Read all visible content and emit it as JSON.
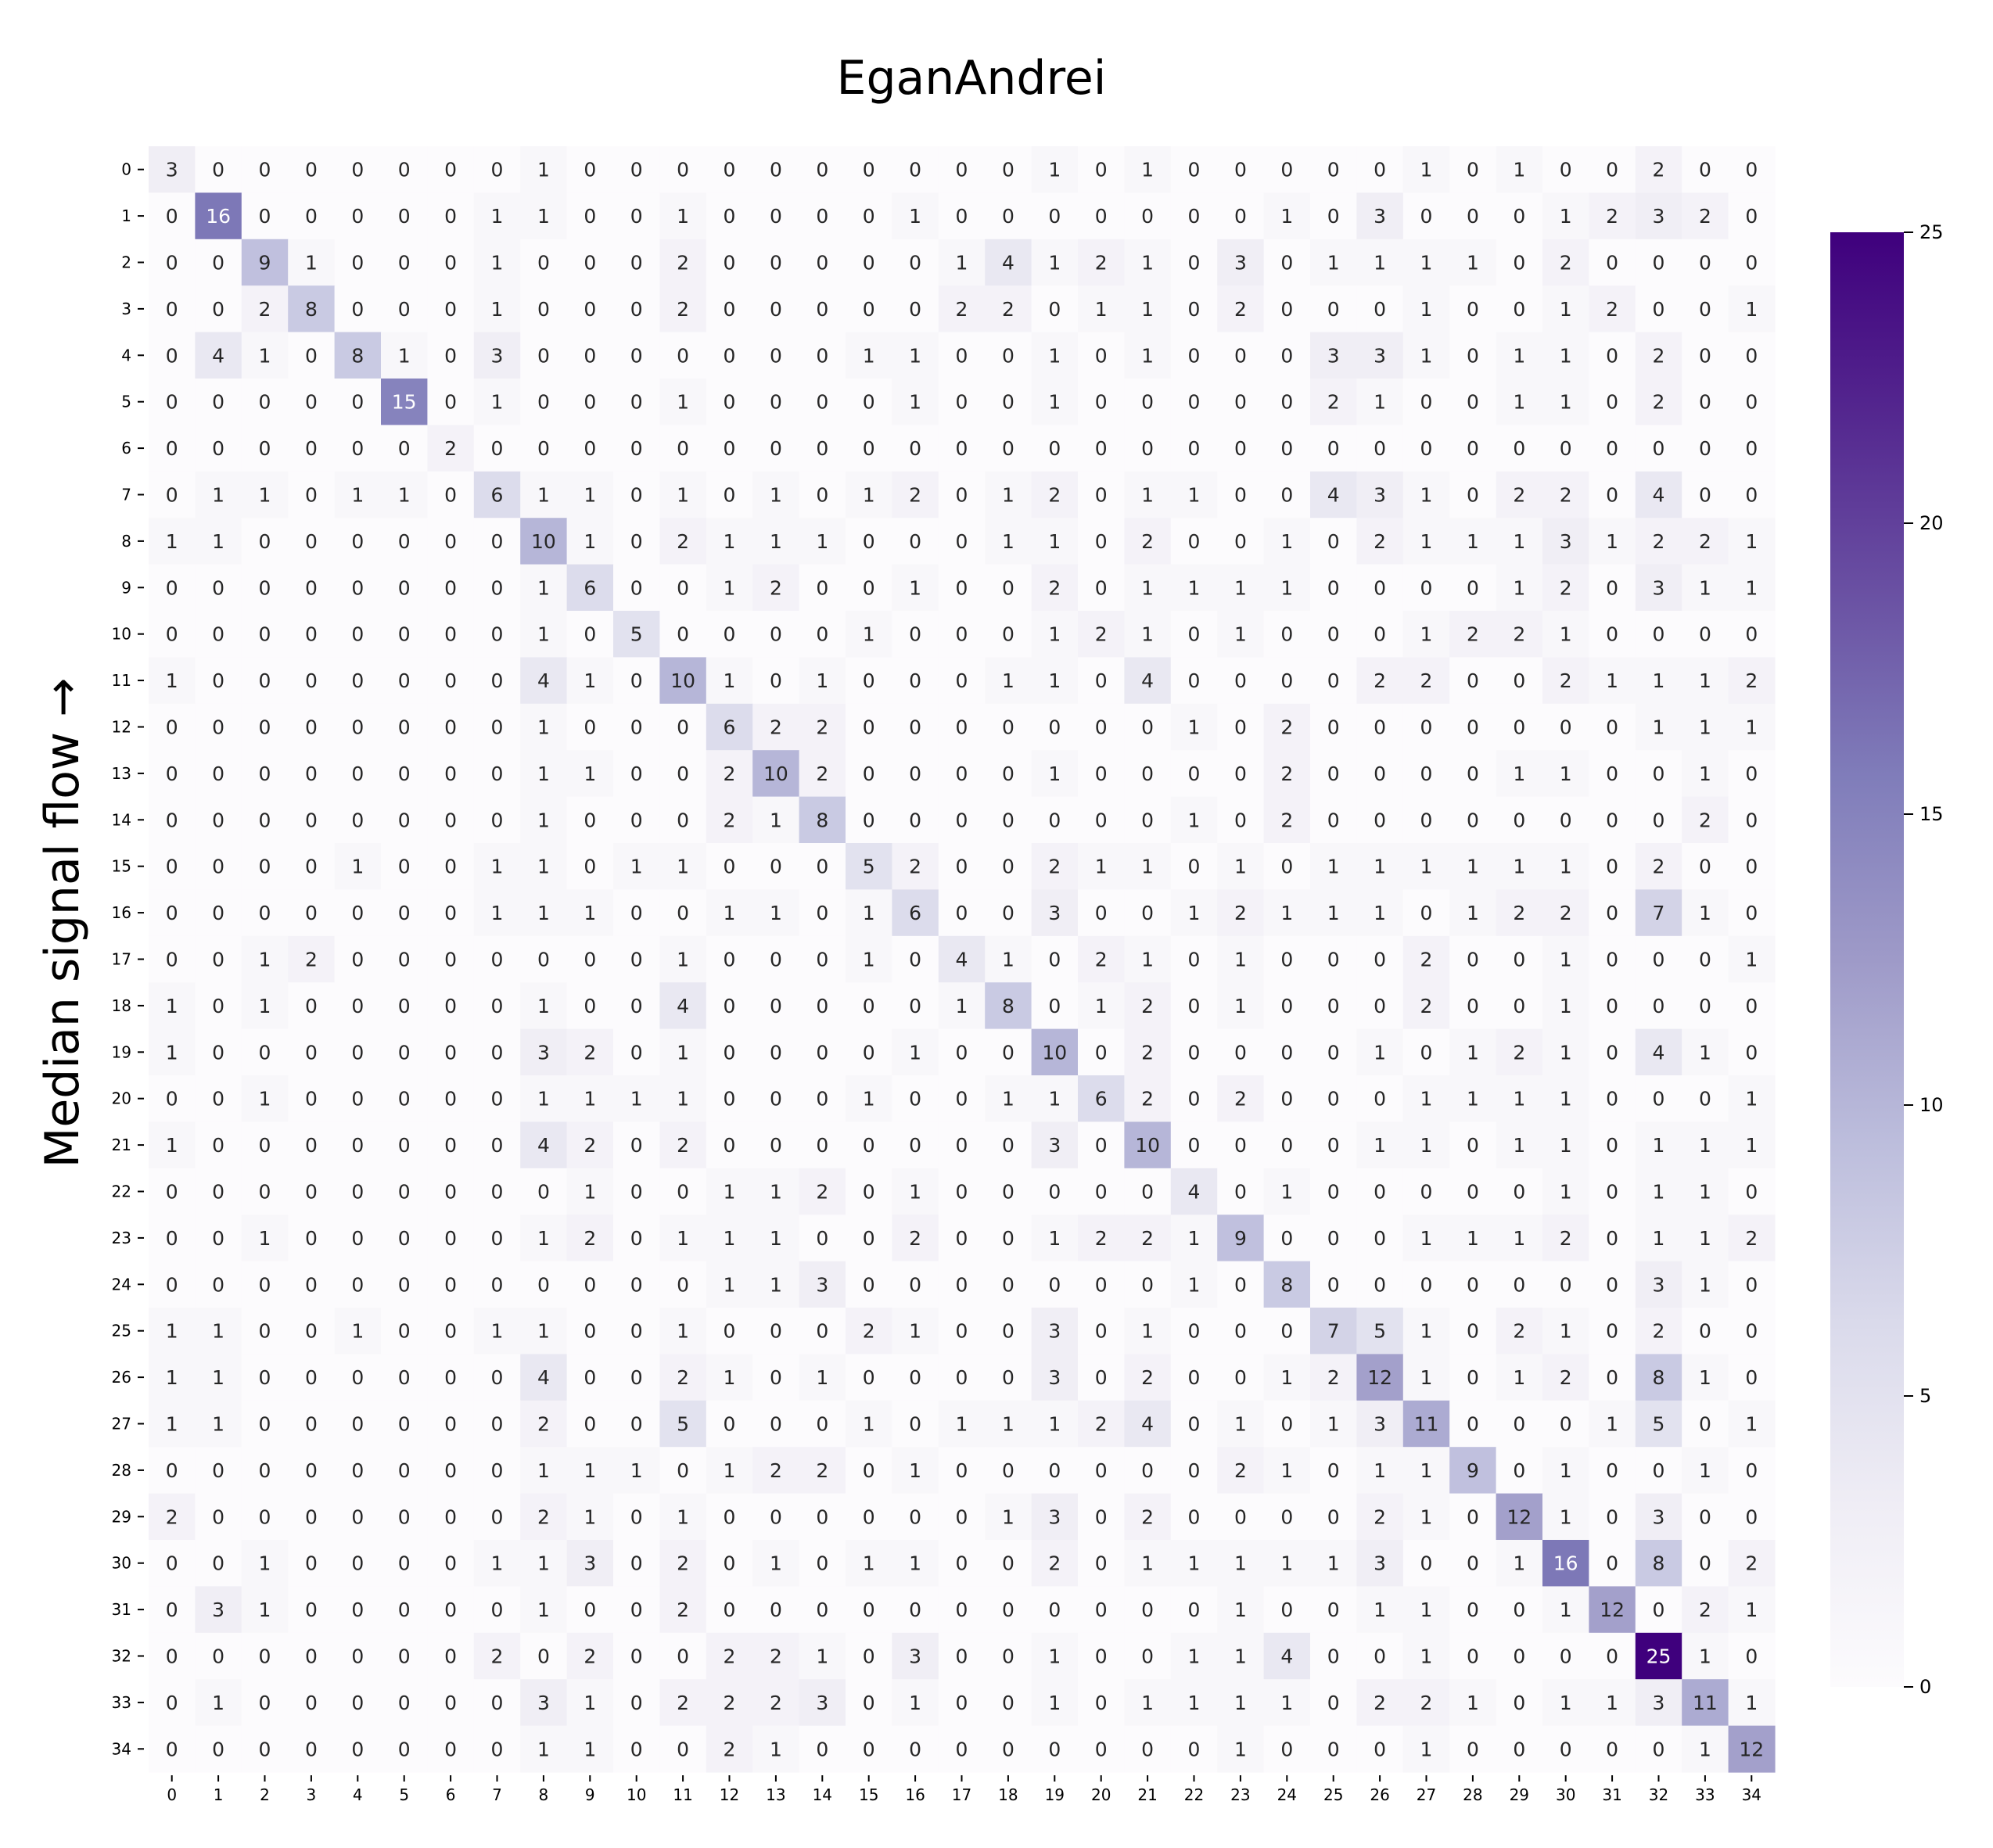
{
  "chart_data": {
    "type": "heatmap",
    "title": "EganAndrei",
    "xlabel": "",
    "ylabel": "Median signal flow →",
    "x_labels": [
      "0",
      "1",
      "2",
      "3",
      "4",
      "5",
      "6",
      "7",
      "8",
      "9",
      "10",
      "11",
      "12",
      "13",
      "14",
      "15",
      "16",
      "17",
      "18",
      "19",
      "20",
      "21",
      "22",
      "23",
      "24",
      "25",
      "26",
      "27",
      "28",
      "29",
      "30",
      "31",
      "32",
      "33",
      "34"
    ],
    "y_labels": [
      "0",
      "1",
      "2",
      "3",
      "4",
      "5",
      "6",
      "7",
      "8",
      "9",
      "10",
      "11",
      "12",
      "13",
      "14",
      "15",
      "16",
      "17",
      "18",
      "19",
      "20",
      "21",
      "22",
      "23",
      "24",
      "25",
      "26",
      "27",
      "28",
      "29",
      "30",
      "31",
      "32",
      "33",
      "34"
    ],
    "values": [
      [
        3,
        0,
        0,
        0,
        0,
        0,
        0,
        0,
        1,
        0,
        0,
        0,
        0,
        0,
        0,
        0,
        0,
        0,
        0,
        1,
        0,
        1,
        0,
        0,
        0,
        0,
        0,
        1,
        0,
        1,
        0,
        0,
        2,
        0,
        0
      ],
      [
        0,
        16,
        0,
        0,
        0,
        0,
        0,
        1,
        1,
        0,
        0,
        1,
        0,
        0,
        0,
        0,
        1,
        0,
        0,
        0,
        0,
        0,
        0,
        0,
        1,
        0,
        3,
        0,
        0,
        0,
        1,
        2,
        3,
        2,
        0
      ],
      [
        0,
        0,
        9,
        1,
        0,
        0,
        0,
        1,
        0,
        0,
        0,
        2,
        0,
        0,
        0,
        0,
        0,
        1,
        4,
        1,
        2,
        1,
        0,
        3,
        0,
        1,
        1,
        1,
        1,
        0,
        2,
        0,
        0,
        0,
        0
      ],
      [
        0,
        0,
        2,
        8,
        0,
        0,
        0,
        1,
        0,
        0,
        0,
        2,
        0,
        0,
        0,
        0,
        0,
        2,
        2,
        0,
        1,
        1,
        0,
        2,
        0,
        0,
        0,
        1,
        0,
        0,
        1,
        2,
        0,
        0,
        1
      ],
      [
        0,
        4,
        1,
        0,
        8,
        1,
        0,
        3,
        0,
        0,
        0,
        0,
        0,
        0,
        0,
        1,
        1,
        0,
        0,
        1,
        0,
        1,
        0,
        0,
        0,
        3,
        3,
        1,
        0,
        1,
        1,
        0,
        2,
        0,
        0
      ],
      [
        0,
        0,
        0,
        0,
        0,
        15,
        0,
        1,
        0,
        0,
        0,
        1,
        0,
        0,
        0,
        0,
        1,
        0,
        0,
        1,
        0,
        0,
        0,
        0,
        0,
        2,
        1,
        0,
        0,
        1,
        1,
        0,
        2,
        0,
        0
      ],
      [
        0,
        0,
        0,
        0,
        0,
        0,
        2,
        0,
        0,
        0,
        0,
        0,
        0,
        0,
        0,
        0,
        0,
        0,
        0,
        0,
        0,
        0,
        0,
        0,
        0,
        0,
        0,
        0,
        0,
        0,
        0,
        0,
        0,
        0,
        0
      ],
      [
        0,
        1,
        1,
        0,
        1,
        1,
        0,
        6,
        1,
        1,
        0,
        1,
        0,
        1,
        0,
        1,
        2,
        0,
        1,
        2,
        0,
        1,
        1,
        0,
        0,
        4,
        3,
        1,
        0,
        2,
        2,
        0,
        4,
        0,
        0
      ],
      [
        1,
        1,
        0,
        0,
        0,
        0,
        0,
        0,
        10,
        1,
        0,
        2,
        1,
        1,
        1,
        0,
        0,
        0,
        1,
        1,
        0,
        2,
        0,
        0,
        1,
        0,
        2,
        1,
        1,
        1,
        3,
        1,
        2,
        2,
        1
      ],
      [
        0,
        0,
        0,
        0,
        0,
        0,
        0,
        0,
        1,
        6,
        0,
        0,
        1,
        2,
        0,
        0,
        1,
        0,
        0,
        2,
        0,
        1,
        1,
        1,
        1,
        0,
        0,
        0,
        0,
        1,
        2,
        0,
        3,
        1,
        1
      ],
      [
        0,
        0,
        0,
        0,
        0,
        0,
        0,
        0,
        1,
        0,
        5,
        0,
        0,
        0,
        0,
        1,
        0,
        0,
        0,
        1,
        2,
        1,
        0,
        1,
        0,
        0,
        0,
        1,
        2,
        2,
        1,
        0,
        0,
        0,
        0
      ],
      [
        1,
        0,
        0,
        0,
        0,
        0,
        0,
        0,
        4,
        1,
        0,
        10,
        1,
        0,
        1,
        0,
        0,
        0,
        1,
        1,
        0,
        4,
        0,
        0,
        0,
        0,
        2,
        2,
        0,
        0,
        2,
        1,
        1,
        1,
        2
      ],
      [
        0,
        0,
        0,
        0,
        0,
        0,
        0,
        0,
        1,
        0,
        0,
        0,
        6,
        2,
        2,
        0,
        0,
        0,
        0,
        0,
        0,
        0,
        1,
        0,
        2,
        0,
        0,
        0,
        0,
        0,
        0,
        0,
        1,
        1,
        1
      ],
      [
        0,
        0,
        0,
        0,
        0,
        0,
        0,
        0,
        1,
        1,
        0,
        0,
        2,
        10,
        2,
        0,
        0,
        0,
        0,
        1,
        0,
        0,
        0,
        0,
        2,
        0,
        0,
        0,
        0,
        1,
        1,
        0,
        0,
        1,
        0
      ],
      [
        0,
        0,
        0,
        0,
        0,
        0,
        0,
        0,
        1,
        0,
        0,
        0,
        2,
        1,
        8,
        0,
        0,
        0,
        0,
        0,
        0,
        0,
        1,
        0,
        2,
        0,
        0,
        0,
        0,
        0,
        0,
        0,
        0,
        2,
        0
      ],
      [
        0,
        0,
        0,
        0,
        1,
        0,
        0,
        1,
        1,
        0,
        1,
        1,
        0,
        0,
        0,
        5,
        2,
        0,
        0,
        2,
        1,
        1,
        0,
        1,
        0,
        1,
        1,
        1,
        1,
        1,
        1,
        0,
        2,
        0,
        0
      ],
      [
        0,
        0,
        0,
        0,
        0,
        0,
        0,
        1,
        1,
        1,
        0,
        0,
        1,
        1,
        0,
        1,
        6,
        0,
        0,
        3,
        0,
        0,
        1,
        2,
        1,
        1,
        1,
        0,
        1,
        2,
        2,
        0,
        7,
        1,
        0
      ],
      [
        0,
        0,
        1,
        2,
        0,
        0,
        0,
        0,
        0,
        0,
        0,
        1,
        0,
        0,
        0,
        1,
        0,
        4,
        1,
        0,
        2,
        1,
        0,
        1,
        0,
        0,
        0,
        2,
        0,
        0,
        1,
        0,
        0,
        0,
        1
      ],
      [
        1,
        0,
        1,
        0,
        0,
        0,
        0,
        0,
        1,
        0,
        0,
        4,
        0,
        0,
        0,
        0,
        0,
        1,
        8,
        0,
        1,
        2,
        0,
        1,
        0,
        0,
        0,
        2,
        0,
        0,
        1,
        0,
        0,
        0,
        0
      ],
      [
        1,
        0,
        0,
        0,
        0,
        0,
        0,
        0,
        3,
        2,
        0,
        1,
        0,
        0,
        0,
        0,
        1,
        0,
        0,
        10,
        0,
        2,
        0,
        0,
        0,
        0,
        1,
        0,
        1,
        2,
        1,
        0,
        4,
        1,
        0
      ],
      [
        0,
        0,
        1,
        0,
        0,
        0,
        0,
        0,
        1,
        1,
        1,
        1,
        0,
        0,
        0,
        1,
        0,
        0,
        1,
        1,
        6,
        2,
        0,
        2,
        0,
        0,
        0,
        1,
        1,
        1,
        1,
        0,
        0,
        0,
        1
      ],
      [
        1,
        0,
        0,
        0,
        0,
        0,
        0,
        0,
        4,
        2,
        0,
        2,
        0,
        0,
        0,
        0,
        0,
        0,
        0,
        3,
        0,
        10,
        0,
        0,
        0,
        0,
        1,
        1,
        0,
        1,
        1,
        0,
        1,
        1,
        1
      ],
      [
        0,
        0,
        0,
        0,
        0,
        0,
        0,
        0,
        0,
        1,
        0,
        0,
        1,
        1,
        2,
        0,
        1,
        0,
        0,
        0,
        0,
        0,
        4,
        0,
        1,
        0,
        0,
        0,
        0,
        0,
        1,
        0,
        1,
        1,
        0
      ],
      [
        0,
        0,
        1,
        0,
        0,
        0,
        0,
        0,
        1,
        2,
        0,
        1,
        1,
        1,
        0,
        0,
        2,
        0,
        0,
        1,
        2,
        2,
        1,
        9,
        0,
        0,
        0,
        1,
        1,
        1,
        2,
        0,
        1,
        1,
        2
      ],
      [
        0,
        0,
        0,
        0,
        0,
        0,
        0,
        0,
        0,
        0,
        0,
        0,
        1,
        1,
        3,
        0,
        0,
        0,
        0,
        0,
        0,
        0,
        1,
        0,
        8,
        0,
        0,
        0,
        0,
        0,
        0,
        0,
        3,
        1,
        0
      ],
      [
        1,
        1,
        0,
        0,
        1,
        0,
        0,
        1,
        1,
        0,
        0,
        1,
        0,
        0,
        0,
        2,
        1,
        0,
        0,
        3,
        0,
        1,
        0,
        0,
        0,
        7,
        5,
        1,
        0,
        2,
        1,
        0,
        2,
        0,
        0
      ],
      [
        1,
        1,
        0,
        0,
        0,
        0,
        0,
        0,
        4,
        0,
        0,
        2,
        1,
        0,
        1,
        0,
        0,
        0,
        0,
        3,
        0,
        2,
        0,
        0,
        1,
        2,
        12,
        1,
        0,
        1,
        2,
        0,
        8,
        1,
        0
      ],
      [
        1,
        1,
        0,
        0,
        0,
        0,
        0,
        0,
        2,
        0,
        0,
        5,
        0,
        0,
        0,
        1,
        0,
        1,
        1,
        1,
        2,
        4,
        0,
        1,
        0,
        1,
        3,
        11,
        0,
        0,
        0,
        1,
        5,
        0,
        1
      ],
      [
        0,
        0,
        0,
        0,
        0,
        0,
        0,
        0,
        1,
        1,
        1,
        0,
        1,
        2,
        2,
        0,
        1,
        0,
        0,
        0,
        0,
        0,
        0,
        2,
        1,
        0,
        1,
        1,
        9,
        0,
        1,
        0,
        0,
        1,
        0
      ],
      [
        2,
        0,
        0,
        0,
        0,
        0,
        0,
        0,
        2,
        1,
        0,
        1,
        0,
        0,
        0,
        0,
        0,
        0,
        1,
        3,
        0,
        2,
        0,
        0,
        0,
        0,
        2,
        1,
        0,
        12,
        1,
        0,
        3,
        0,
        0
      ],
      [
        0,
        0,
        1,
        0,
        0,
        0,
        0,
        1,
        1,
        3,
        0,
        2,
        0,
        1,
        0,
        1,
        1,
        0,
        0,
        2,
        0,
        1,
        1,
        1,
        1,
        1,
        3,
        0,
        0,
        1,
        16,
        0,
        8,
        0,
        2
      ],
      [
        0,
        3,
        1,
        0,
        0,
        0,
        0,
        0,
        1,
        0,
        0,
        2,
        0,
        0,
        0,
        0,
        0,
        0,
        0,
        0,
        0,
        0,
        0,
        1,
        0,
        0,
        1,
        1,
        0,
        0,
        1,
        12,
        0,
        2,
        1
      ],
      [
        0,
        0,
        0,
        0,
        0,
        0,
        0,
        2,
        0,
        2,
        0,
        0,
        2,
        2,
        1,
        0,
        3,
        0,
        0,
        1,
        0,
        0,
        1,
        1,
        4,
        0,
        0,
        1,
        0,
        0,
        0,
        0,
        25,
        1,
        0
      ],
      [
        0,
        1,
        0,
        0,
        0,
        0,
        0,
        0,
        3,
        1,
        0,
        2,
        2,
        2,
        3,
        0,
        1,
        0,
        0,
        1,
        0,
        1,
        1,
        1,
        1,
        0,
        2,
        2,
        1,
        0,
        1,
        1,
        3,
        11,
        1
      ],
      [
        0,
        0,
        0,
        0,
        0,
        0,
        0,
        0,
        1,
        1,
        0,
        0,
        2,
        1,
        0,
        0,
        0,
        0,
        0,
        0,
        0,
        0,
        0,
        1,
        0,
        0,
        0,
        1,
        0,
        0,
        0,
        0,
        0,
        1,
        12
      ]
    ],
    "colorbar": {
      "min": 0,
      "max": 25,
      "ticks": [
        "0",
        "5",
        "10",
        "15",
        "20",
        "25"
      ]
    },
    "colormap": "Purples",
    "colors": {
      "low": "#fcfbfd",
      "high": "#3f007d"
    }
  }
}
